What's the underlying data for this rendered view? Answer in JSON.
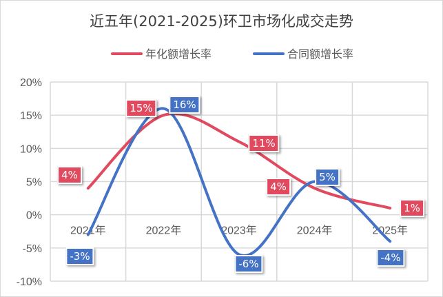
{
  "chart_data": {
    "type": "line",
    "title": "近五年(2021-2025)环卫市场化成交走势",
    "categories": [
      "2021年",
      "2022年",
      "2023年",
      "2024年",
      "2025年"
    ],
    "series": [
      {
        "name": "年化额增长率",
        "color": "#E0495E",
        "values": [
          4,
          15,
          11,
          4,
          1
        ]
      },
      {
        "name": "合同额增长率",
        "color": "#4472C4",
        "values": [
          -3,
          16,
          -6,
          5,
          -4
        ]
      }
    ],
    "ylim": [
      -10,
      20
    ],
    "yticks": [
      "20%",
      "15%",
      "10%",
      "5%",
      "0%",
      "-5%",
      "-10%"
    ],
    "ytick_values": [
      20,
      15,
      10,
      5,
      0,
      -5,
      -10
    ],
    "value_suffix": "%",
    "smooth": true,
    "grid": true,
    "legend": "top",
    "data_labels": true
  }
}
